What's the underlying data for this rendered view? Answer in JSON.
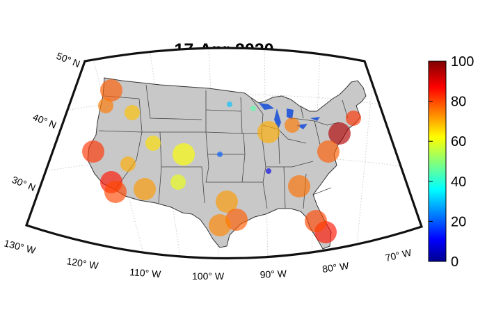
{
  "title": "17-Apr-2020",
  "latitude_labels": [
    {
      "text": "50° N"
    },
    {
      "text": "40° N"
    },
    {
      "text": "30° N"
    }
  ],
  "longitude_labels": [
    {
      "text": "130° W"
    },
    {
      "text": "120° W"
    },
    {
      "text": "110° W"
    },
    {
      "text": "100° W"
    },
    {
      "text": "90° W"
    },
    {
      "text": "80° W"
    },
    {
      "text": "70° W"
    }
  ],
  "colorbar": {
    "min": 0,
    "max": 100,
    "ticks": [
      "0",
      "20",
      "40",
      "60",
      "80",
      "100"
    ],
    "colormap": "jet"
  },
  "colors": {
    "land": "#c8c8c8",
    "water": "#ffffff",
    "state_border": "#444444",
    "lakes": "#2e5fd6"
  },
  "markers": [
    {
      "region": "Seattle WA",
      "value": 78,
      "size": "large"
    },
    {
      "region": "Portland OR",
      "value": 75,
      "size": "medium"
    },
    {
      "region": "Boise ID",
      "value": 68,
      "size": "medium"
    },
    {
      "region": "San Francisco CA",
      "value": 82,
      "size": "large"
    },
    {
      "region": "Los Angeles CA",
      "value": 85,
      "size": "large"
    },
    {
      "region": "San Diego CA",
      "value": 80,
      "size": "large"
    },
    {
      "region": "Phoenix AZ",
      "value": 72,
      "size": "large"
    },
    {
      "region": "Las Vegas NV",
      "value": 70,
      "size": "medium"
    },
    {
      "region": "Salt Lake City UT",
      "value": 65,
      "size": "medium"
    },
    {
      "region": "Denver CO",
      "value": 62,
      "size": "large"
    },
    {
      "region": "Albuquerque NM",
      "value": 60,
      "size": "medium"
    },
    {
      "region": "Dallas TX",
      "value": 72,
      "size": "large"
    },
    {
      "region": "Houston TX",
      "value": 78,
      "size": "large"
    },
    {
      "region": "San Antonio TX",
      "value": 74,
      "size": "large"
    },
    {
      "region": "Chicago IL",
      "value": 70,
      "size": "large"
    },
    {
      "region": "Detroit MI",
      "value": 75,
      "size": "medium"
    },
    {
      "region": "Atlanta GA",
      "value": 76,
      "size": "large"
    },
    {
      "region": "Miami FL",
      "value": 85,
      "size": "large"
    },
    {
      "region": "Tampa FL",
      "value": 80,
      "size": "large"
    },
    {
      "region": "New York NY",
      "value": 95,
      "size": "large"
    },
    {
      "region": "Boston MA",
      "value": 82,
      "size": "medium"
    },
    {
      "region": "Washington DC",
      "value": 78,
      "size": "large"
    },
    {
      "region": "Minneapolis MN",
      "value": 30,
      "size": "small"
    },
    {
      "region": "Wichita KS",
      "value": 20,
      "size": "small"
    },
    {
      "region": "Memphis TN",
      "value": 8,
      "size": "small"
    },
    {
      "region": "Green Bay WI",
      "value": 45,
      "size": "small"
    }
  ]
}
